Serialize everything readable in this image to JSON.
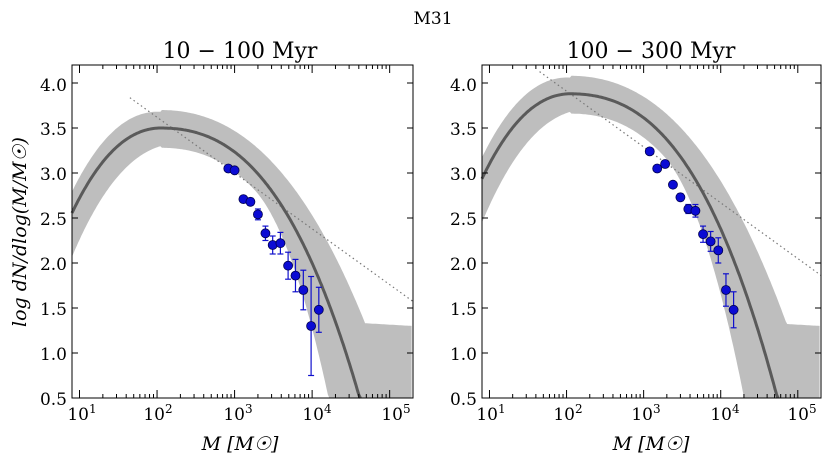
{
  "figure_title": "M31",
  "chart_data": [
    {
      "type": "scatter",
      "title": "10 − 100 Myr",
      "xlabel": "M [M☉]",
      "ylabel": "log dN/dlog(M/M☉)",
      "xscale": "log",
      "xlim": [
        8,
        200000
      ],
      "ylim": [
        0.5,
        4.2
      ],
      "yticks": [
        "0.5",
        "1.0",
        "1.5",
        "2.0",
        "2.5",
        "3.0",
        "3.5",
        "4.0"
      ],
      "xticks": [
        {
          "base": "10",
          "exp": "1"
        },
        {
          "base": "10",
          "exp": "2"
        },
        {
          "base": "10",
          "exp": "3"
        },
        {
          "base": "10",
          "exp": "4"
        },
        {
          "base": "10",
          "exp": "5"
        }
      ],
      "model_peak_log_mass": 2.05,
      "model_peak_value": 3.5,
      "points": [
        {
          "x": 830,
          "y": 3.05,
          "err": 0.0
        },
        {
          "x": 1000,
          "y": 3.03,
          "err": 0.0
        },
        {
          "x": 1300,
          "y": 2.71,
          "err": 0.03
        },
        {
          "x": 1600,
          "y": 2.68,
          "err": 0.04
        },
        {
          "x": 2000,
          "y": 2.54,
          "err": 0.06
        },
        {
          "x": 2500,
          "y": 2.33,
          "err": 0.08
        },
        {
          "x": 3100,
          "y": 2.2,
          "err": 0.1
        },
        {
          "x": 3900,
          "y": 2.22,
          "err": 0.12
        },
        {
          "x": 4900,
          "y": 1.97,
          "err": 0.15
        },
        {
          "x": 6100,
          "y": 1.86,
          "err": 0.18
        },
        {
          "x": 7700,
          "y": 1.7,
          "err": 0.22
        },
        {
          "x": 9700,
          "y": 1.3,
          "err": 0.55
        },
        {
          "x": 12200,
          "y": 1.48,
          "err": 0.25
        }
      ]
    },
    {
      "type": "scatter",
      "title": "100 − 300 Myr",
      "xlabel": "M [M☉]",
      "ylabel": "",
      "xscale": "log",
      "xlim": [
        8,
        200000
      ],
      "ylim": [
        0.5,
        4.2
      ],
      "yticks": [
        "0.5",
        "1.0",
        "1.5",
        "2.0",
        "2.5",
        "3.0",
        "3.5",
        "4.0"
      ],
      "xticks": [
        {
          "base": "10",
          "exp": "1"
        },
        {
          "base": "10",
          "exp": "2"
        },
        {
          "base": "10",
          "exp": "3"
        },
        {
          "base": "10",
          "exp": "4"
        },
        {
          "base": "10",
          "exp": "5"
        }
      ],
      "model_peak_log_mass": 2.05,
      "model_peak_value": 3.88,
      "points": [
        {
          "x": 1200,
          "y": 3.24,
          "err": 0.0
        },
        {
          "x": 1500,
          "y": 3.05,
          "err": 0.0
        },
        {
          "x": 1900,
          "y": 3.1,
          "err": 0.0
        },
        {
          "x": 2400,
          "y": 2.87,
          "err": 0.03
        },
        {
          "x": 3000,
          "y": 2.73,
          "err": 0.04
        },
        {
          "x": 3800,
          "y": 2.6,
          "err": 0.05
        },
        {
          "x": 4700,
          "y": 2.58,
          "err": 0.07
        },
        {
          "x": 5900,
          "y": 2.32,
          "err": 0.09
        },
        {
          "x": 7400,
          "y": 2.24,
          "err": 0.11
        },
        {
          "x": 9300,
          "y": 2.14,
          "err": 0.14
        },
        {
          "x": 11700,
          "y": 1.7,
          "err": 0.18
        },
        {
          "x": 14700,
          "y": 1.48,
          "err": 0.2
        }
      ]
    }
  ]
}
